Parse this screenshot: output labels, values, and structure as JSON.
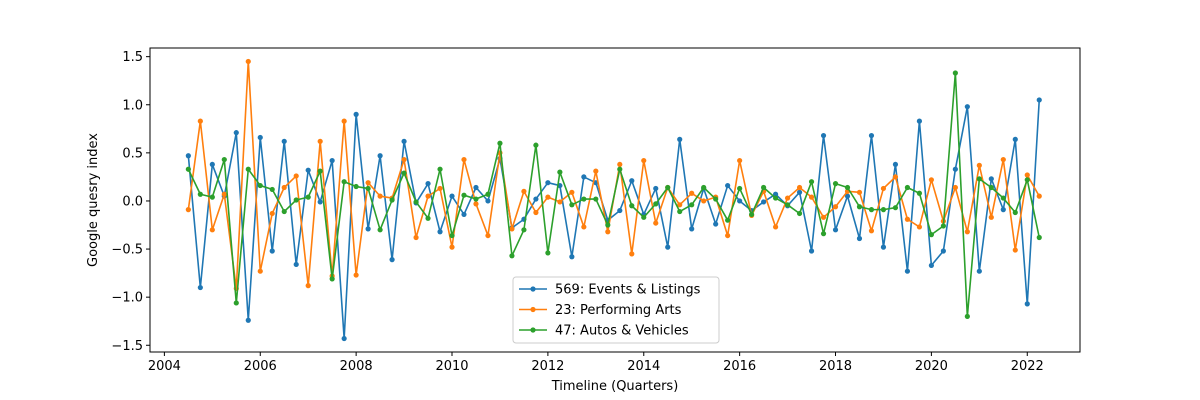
{
  "chart_data": {
    "type": "line",
    "xlabel": "Timeline (Quarters)",
    "ylabel": "Google quesry index",
    "xlim": [
      2003.7,
      2023.1
    ],
    "ylim": [
      -1.57,
      1.59
    ],
    "xticks": [
      2004,
      2006,
      2008,
      2010,
      2012,
      2014,
      2016,
      2018,
      2020,
      2022
    ],
    "yticks": [
      -1.5,
      -1.0,
      -0.5,
      0.0,
      0.5,
      1.0,
      1.5
    ],
    "grid": false,
    "legend_position": "bottom-center",
    "x": [
      2004.5,
      2004.75,
      2005.0,
      2005.25,
      2005.5,
      2005.75,
      2006.0,
      2006.25,
      2006.5,
      2006.75,
      2007.0,
      2007.25,
      2007.5,
      2007.75,
      2008.0,
      2008.25,
      2008.5,
      2008.75,
      2009.0,
      2009.25,
      2009.5,
      2009.75,
      2010.0,
      2010.25,
      2010.5,
      2010.75,
      2011.0,
      2011.25,
      2011.5,
      2011.75,
      2012.0,
      2012.25,
      2012.5,
      2012.75,
      2013.0,
      2013.25,
      2013.5,
      2013.75,
      2014.0,
      2014.25,
      2014.5,
      2014.75,
      2015.0,
      2015.25,
      2015.5,
      2015.75,
      2016.0,
      2016.25,
      2016.5,
      2016.75,
      2017.0,
      2017.25,
      2017.5,
      2017.75,
      2018.0,
      2018.25,
      2018.5,
      2018.75,
      2019.0,
      2019.25,
      2019.5,
      2019.75,
      2020.0,
      2020.25,
      2020.5,
      2020.75,
      2021.0,
      2021.25,
      2021.5,
      2021.75,
      2022.0,
      2022.25
    ],
    "series": [
      {
        "name": "569: Events & Listings",
        "color": "#1f77b4",
        "values": [
          0.47,
          -0.9,
          0.38,
          0.05,
          0.71,
          -1.24,
          0.66,
          -0.52,
          0.62,
          -0.66,
          0.32,
          -0.01,
          0.42,
          -1.43,
          0.9,
          -0.29,
          0.47,
          -0.61,
          0.62,
          -0.02,
          0.18,
          -0.32,
          0.05,
          -0.14,
          0.14,
          0.0,
          0.44,
          -0.28,
          -0.19,
          0.02,
          0.19,
          0.16,
          -0.58,
          0.25,
          0.19,
          -0.2,
          -0.1,
          0.21,
          -0.14,
          0.13,
          -0.48,
          0.64,
          -0.29,
          0.13,
          -0.24,
          0.16,
          0.0,
          -0.1,
          -0.01,
          0.07,
          -0.05,
          0.09,
          -0.52,
          0.68,
          -0.3,
          0.05,
          -0.39,
          0.68,
          -0.48,
          0.38,
          -0.73,
          0.83,
          -0.67,
          -0.52,
          0.33,
          0.98,
          -0.73,
          0.23,
          -0.09,
          0.64,
          -1.07,
          1.05
        ]
      },
      {
        "name": "23: Performing Arts",
        "color": "#ff7f0e",
        "values": [
          -0.09,
          0.83,
          -0.3,
          0.07,
          -0.91,
          1.45,
          -0.73,
          -0.13,
          0.14,
          0.26,
          -0.88,
          0.62,
          -0.78,
          0.83,
          -0.77,
          0.19,
          0.05,
          0.03,
          0.43,
          -0.38,
          0.05,
          0.13,
          -0.48,
          0.43,
          -0.03,
          -0.36,
          0.5,
          -0.29,
          0.1,
          -0.12,
          0.04,
          -0.01,
          0.09,
          -0.27,
          0.31,
          -0.32,
          0.38,
          -0.55,
          0.42,
          -0.23,
          0.14,
          -0.04,
          0.08,
          0.0,
          0.04,
          -0.36,
          0.42,
          -0.15,
          0.1,
          -0.27,
          0.03,
          0.14,
          0.04,
          -0.17,
          -0.06,
          0.1,
          0.09,
          -0.31,
          0.13,
          0.25,
          -0.19,
          -0.27,
          0.22,
          -0.21,
          0.14,
          -0.32,
          0.37,
          -0.17,
          0.43,
          -0.51,
          0.27,
          0.05
        ]
      },
      {
        "name": "47: Autos & Vehicles",
        "color": "#2ca02c",
        "values": [
          0.33,
          0.07,
          0.04,
          0.43,
          -1.06,
          0.33,
          0.16,
          0.12,
          -0.11,
          0.01,
          0.04,
          0.31,
          -0.81,
          0.2,
          0.15,
          0.13,
          -0.3,
          0.01,
          0.29,
          -0.01,
          -0.18,
          0.33,
          -0.36,
          0.06,
          0.02,
          0.07,
          0.6,
          -0.57,
          -0.3,
          0.58,
          -0.54,
          0.3,
          -0.04,
          0.02,
          0.02,
          -0.25,
          0.33,
          -0.05,
          -0.17,
          -0.03,
          0.14,
          -0.11,
          -0.04,
          0.14,
          0.02,
          -0.2,
          0.13,
          -0.14,
          0.14,
          0.03,
          -0.04,
          -0.13,
          0.2,
          -0.34,
          0.18,
          0.14,
          -0.06,
          -0.09,
          -0.09,
          -0.07,
          0.14,
          0.08,
          -0.35,
          -0.26,
          1.33,
          -1.2,
          0.23,
          0.14,
          0.03,
          -0.12,
          0.22,
          -0.38
        ]
      }
    ]
  }
}
